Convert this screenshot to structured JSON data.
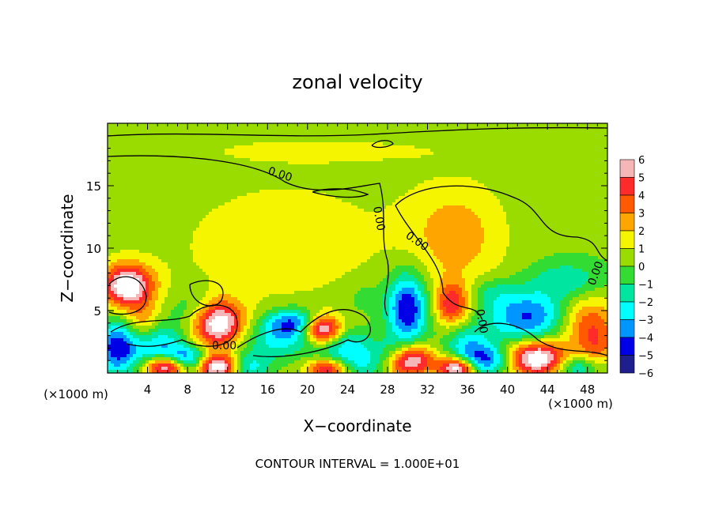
{
  "chart_data": {
    "type": "heatmap",
    "title": "zonal velocity",
    "xlabel": "X−coordinate",
    "ylabel": "Z−coordinate",
    "x_unit_left": "(×1000 m)",
    "x_unit_right": "(×1000 m)",
    "xlim": [
      0,
      50
    ],
    "ylim": [
      0,
      20
    ],
    "x_ticks": [
      4,
      8,
      12,
      16,
      20,
      24,
      28,
      32,
      36,
      40,
      44,
      48
    ],
    "y_ticks": [
      5,
      10,
      15
    ],
    "colorbar": {
      "levels": [
        6,
        5,
        4,
        3,
        2,
        1,
        0,
        -1,
        -2,
        -3,
        -4,
        -5,
        -6
      ],
      "colors": [
        "#f4b6b6",
        "#ff2a2a",
        "#ff5a00",
        "#ffa500",
        "#f5f500",
        "#9bdc00",
        "#32dc32",
        "#00e6a0",
        "#00ffff",
        "#0096ff",
        "#0000e6",
        "#1e1e8c"
      ]
    },
    "contour_labels": [
      "0.00",
      "0.00",
      "0.00",
      "0.00",
      "0.00",
      "0.00"
    ],
    "grid": false,
    "footer": "CONTOUR INTERVAL =  1.000E+01",
    "features": [
      {
        "x": 16,
        "z": 10.5,
        "v": 1.3,
        "sx": 8,
        "sz": 4
      },
      {
        "x": 35,
        "z": 11,
        "v": 2.2,
        "sx": 3.5,
        "sz": 3
      },
      {
        "x": 22,
        "z": 17.8,
        "v": 1.0,
        "sx": 9,
        "sz": 0.7
      },
      {
        "x": 2,
        "z": 7,
        "v": 7,
        "sx": 1.8,
        "sz": 1.2
      },
      {
        "x": 3.5,
        "z": 4,
        "v": 2.5,
        "sx": 1.2,
        "sz": 1.2
      },
      {
        "x": 1,
        "z": 2,
        "v": -5,
        "sx": 1.5,
        "sz": 1.5
      },
      {
        "x": 5,
        "z": 2.3,
        "v": -3.5,
        "sx": 1.8,
        "sz": 1.2
      },
      {
        "x": 9,
        "z": 5,
        "v": -2,
        "sx": 1.8,
        "sz": 1.2
      },
      {
        "x": 11,
        "z": 4,
        "v": 7,
        "sx": 1.8,
        "sz": 1.3
      },
      {
        "x": 6,
        "z": 0.5,
        "v": 7,
        "sx": 1.5,
        "sz": 0.6
      },
      {
        "x": 11,
        "z": 0.5,
        "v": 7,
        "sx": 1.5,
        "sz": 0.7
      },
      {
        "x": 8,
        "z": 1,
        "v": -5,
        "sx": 1.5,
        "sz": 0.8
      },
      {
        "x": 14,
        "z": 0.5,
        "v": -3,
        "sx": 1.5,
        "sz": 0.8
      },
      {
        "x": 17,
        "z": 2.5,
        "v": -2.5,
        "sx": 2.5,
        "sz": 1.0
      },
      {
        "x": 18.5,
        "z": 4,
        "v": -4.5,
        "sx": 2,
        "sz": 0.8
      },
      {
        "x": 21.5,
        "z": 3.5,
        "v": 7,
        "sx": 1.3,
        "sz": 0.8
      },
      {
        "x": 24,
        "z": 2,
        "v": -3,
        "sx": 2,
        "sz": 1.0
      },
      {
        "x": 22,
        "z": 0.3,
        "v": 5,
        "sx": 1.5,
        "sz": 0.6
      },
      {
        "x": 26,
        "z": 0.6,
        "v": -2,
        "sx": 2,
        "sz": 0.8
      },
      {
        "x": 30,
        "z": 5.2,
        "v": -5.5,
        "sx": 1.4,
        "sz": 2.0
      },
      {
        "x": 30,
        "z": 1,
        "v": 7,
        "sx": 1.8,
        "sz": 0.9
      },
      {
        "x": 28.5,
        "z": 1.5,
        "v": -2.5,
        "sx": 1.2,
        "sz": 0.8
      },
      {
        "x": 34.5,
        "z": 5.5,
        "v": 4.5,
        "sx": 1.2,
        "sz": 1.2
      },
      {
        "x": 35,
        "z": 0.4,
        "v": 7,
        "sx": 1.3,
        "sz": 0.6
      },
      {
        "x": 36,
        "z": 2,
        "v": -3,
        "sx": 1.5,
        "sz": 1.2
      },
      {
        "x": 42,
        "z": 4.5,
        "v": -4.5,
        "sx": 3,
        "sz": 1.5
      },
      {
        "x": 46,
        "z": 7.5,
        "v": -2,
        "sx": 2.5,
        "sz": 1.0
      },
      {
        "x": 48,
        "z": 4,
        "v": 3.5,
        "sx": 2,
        "sz": 1.5
      },
      {
        "x": 43,
        "z": 1.2,
        "v": 7,
        "sx": 2,
        "sz": 1.0
      },
      {
        "x": 38,
        "z": 1,
        "v": -4,
        "sx": 1.5,
        "sz": 0.8
      },
      {
        "x": 47,
        "z": 0.5,
        "v": -3,
        "sx": 1.5,
        "sz": 0.6
      },
      {
        "x": 49,
        "z": 2,
        "v": 2,
        "sx": 1.3,
        "sz": 1.2
      },
      {
        "x": 26,
        "z": 6,
        "v": -1.2,
        "sx": 1.2,
        "sz": 0.8
      },
      {
        "x": 38.5,
        "z": 6.5,
        "v": -1.3,
        "sx": 1.5,
        "sz": 0.8
      }
    ]
  }
}
